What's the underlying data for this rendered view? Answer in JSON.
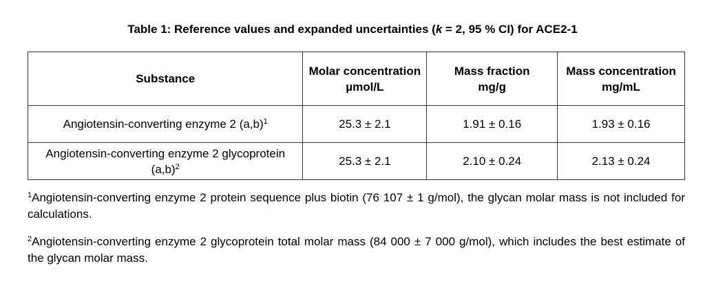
{
  "title": {
    "before": "Table 1: Reference values and expanded uncertainties (",
    "italic": "k",
    "after": " = 2, 95 % CI) for ACE2-1"
  },
  "table": {
    "headers": [
      {
        "name": "Substance"
      },
      {
        "name": "Molar concentration",
        "unit": "µmol/L"
      },
      {
        "name": "Mass fraction",
        "unit": "mg/g"
      },
      {
        "name": "Mass concentration",
        "unit": "mg/mL"
      }
    ],
    "rows": [
      {
        "substance": "Angiotensin-converting enzyme 2 (a,b)",
        "note": "1",
        "cells": [
          "25.3 ± 2.1",
          "1.91 ± 0.16",
          "1.93 ± 0.16"
        ]
      },
      {
        "substance": "Angiotensin-converting enzyme 2 glycoprotein (a,b)",
        "note": "2",
        "cells": [
          "25.3 ± 2.1",
          "2.10 ± 0.24",
          "2.13 ± 0.24"
        ]
      }
    ]
  },
  "footnotes": [
    {
      "marker": "1",
      "text": "Angiotensin-converting enzyme 2 protein sequence plus biotin (76 107 ± 1 g/mol), the glycan molar mass is not included for calculations."
    },
    {
      "marker": "2",
      "text": "Angiotensin-converting enzyme 2 glycoprotein total molar mass (84 000 ± 7 000 g/mol), which includes the best estimate of the glycan molar mass."
    }
  ]
}
